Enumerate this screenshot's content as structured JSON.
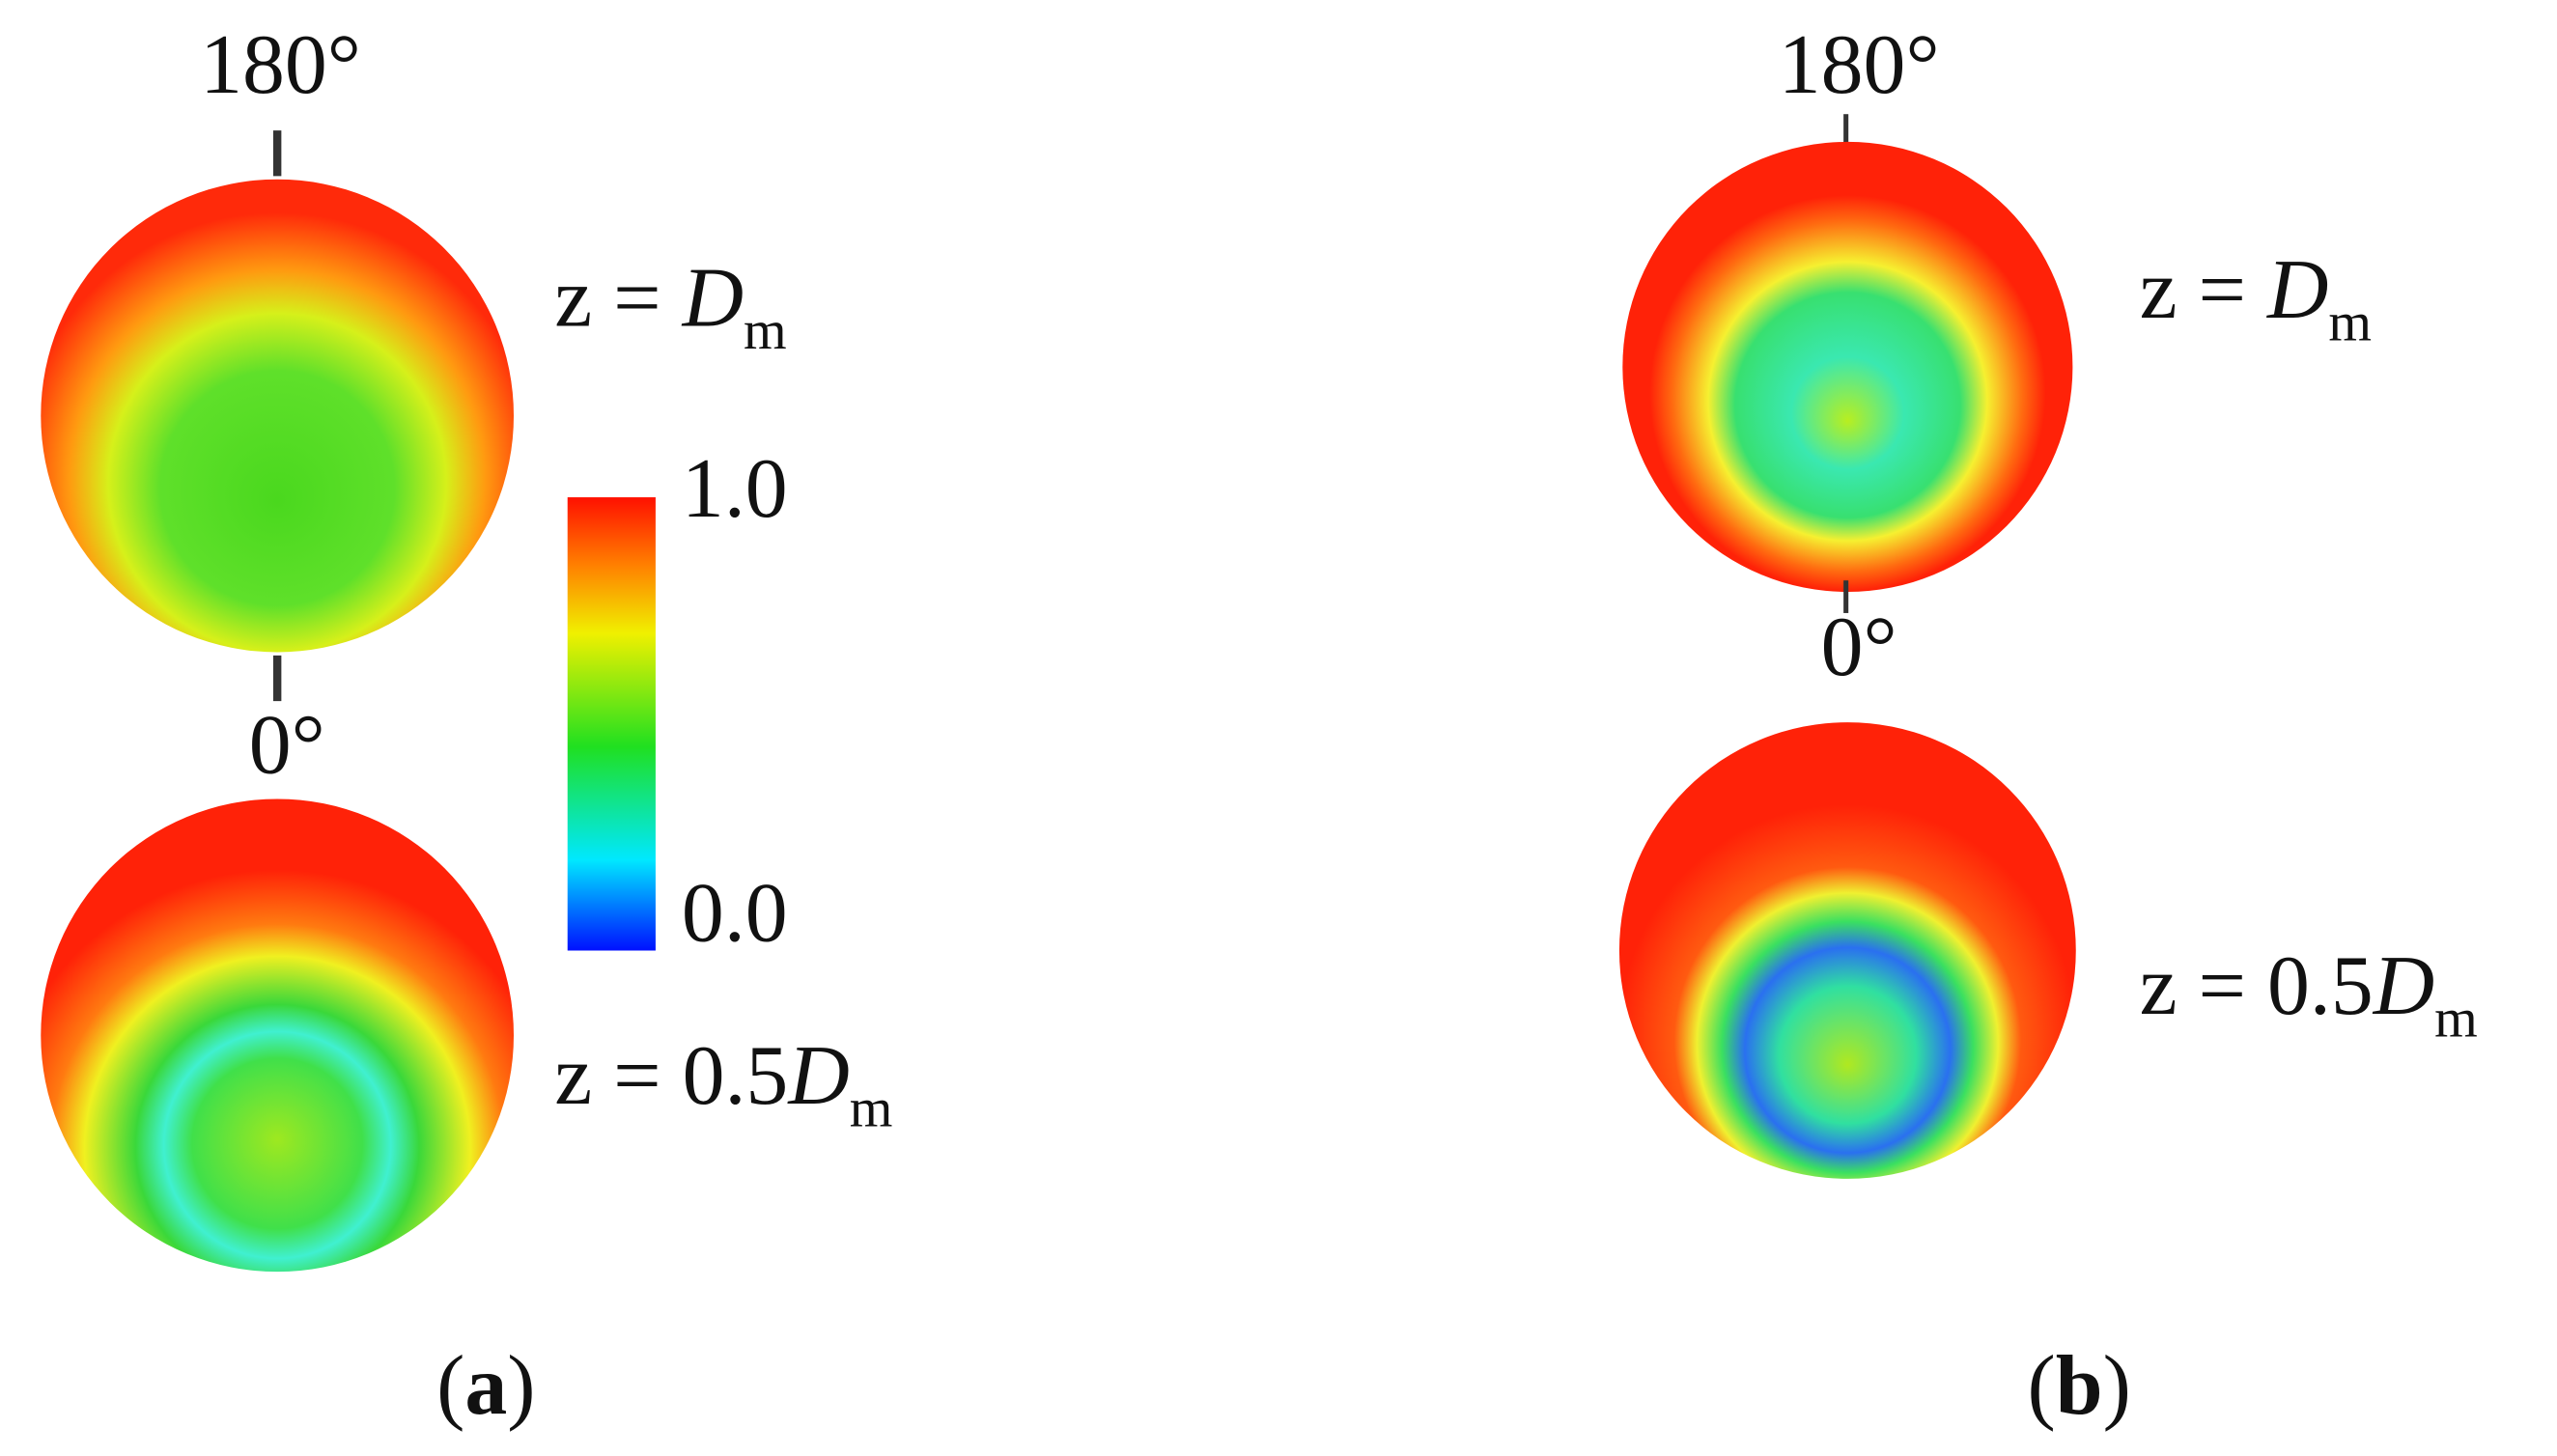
{
  "panels": [
    {
      "top_angle": "180°",
      "bottom_angle": "0°",
      "upper_section": {
        "prefix": "z = ",
        "symbol": "D",
        "subscript": "m"
      },
      "lower_section": {
        "prefix": "z = 0.5",
        "symbol": "D",
        "subscript": "m"
      },
      "colorbar": {
        "max_label": "1.0",
        "min_label": "0.0"
      },
      "caption": {
        "open": "(",
        "letter": "a",
        "close": ")"
      }
    },
    {
      "top_angle": "180°",
      "bottom_angle": "0°",
      "upper_section": {
        "prefix": "z = ",
        "symbol": "D",
        "subscript": "m"
      },
      "lower_section": {
        "prefix": "z = 0.5",
        "symbol": "D",
        "subscript": "m"
      },
      "caption": {
        "open": "(",
        "letter": "b",
        "close": ")"
      }
    }
  ]
}
